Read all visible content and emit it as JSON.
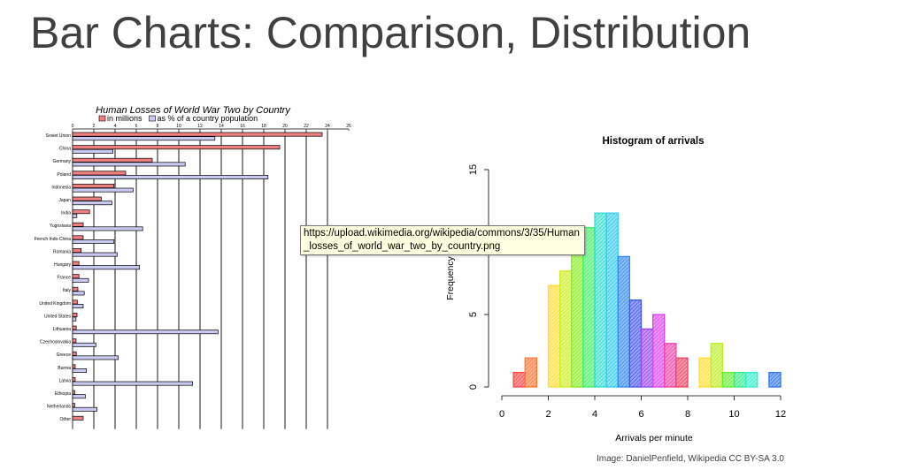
{
  "slide": {
    "title": "Bar Charts: Comparison, Distribution",
    "tooltip": "https://upload.wikimedia.org/wikipedia/commons/3/35/Human_losses_of_world_war_two_by_country.png",
    "credit": "Image: DanielPenfield, Wikipedia CC BY-SA 3.0"
  },
  "chart_data": [
    {
      "type": "bar",
      "orientation": "horizontal",
      "title": "Human Losses of World War Two by Country",
      "categories": [
        "Soviet Union",
        "China",
        "Germany",
        "Poland",
        "Indonesia",
        "Japan",
        "India",
        "Yugoslavia",
        "French Indo-China",
        "Romania",
        "Hungary",
        "France",
        "Italy",
        "United Kingdom",
        "United States",
        "Lithuania",
        "Czechoslovakia",
        "Greece",
        "Burma",
        "Latvia",
        "Ethiopia",
        "Netherlands",
        "Other"
      ],
      "series": [
        {
          "name": "in millions",
          "color": "#f08080",
          "values": [
            23.5,
            19.5,
            7.5,
            5.0,
            3.9,
            2.7,
            1.6,
            1.0,
            1.0,
            0.8,
            0.6,
            0.6,
            0.5,
            0.45,
            0.42,
            0.35,
            0.33,
            0.35,
            0.25,
            0.25,
            0.2,
            0.2,
            1.0
          ]
        },
        {
          "name": "as % of a country population",
          "color": "#c8c8f0",
          "values": [
            13.4,
            3.8,
            10.6,
            18.4,
            5.7,
            3.7,
            0.4,
            6.6,
            3.9,
            4.2,
            6.3,
            1.5,
            1.1,
            1.0,
            0.32,
            13.7,
            2.2,
            4.3,
            1.3,
            11.3,
            1.2,
            2.3,
            0
          ]
        }
      ],
      "xticks": [
        0,
        2,
        4,
        6,
        8,
        10,
        12,
        14,
        16,
        18,
        20,
        22,
        24,
        26
      ],
      "xlim": [
        0,
        26
      ],
      "legend": "top"
    },
    {
      "type": "histogram",
      "title": "Histogram of arrivals",
      "xlabel": "Arrivals per minute",
      "ylabel": "Frequency",
      "bin_width": 0.5,
      "bins": [
        {
          "x0": 0.5,
          "count": 1,
          "color": "#ff4444"
        },
        {
          "x0": 1.0,
          "count": 2,
          "color": "#ff7733"
        },
        {
          "x0": 1.5,
          "count": 0,
          "color": "#ff9933"
        },
        {
          "x0": 2.0,
          "count": 7,
          "color": "#ffdd33"
        },
        {
          "x0": 2.5,
          "count": 8,
          "color": "#ccee22"
        },
        {
          "x0": 3.0,
          "count": 10,
          "color": "#88ee22"
        },
        {
          "x0": 3.5,
          "count": 11,
          "color": "#44ee66"
        },
        {
          "x0": 4.0,
          "count": 12,
          "color": "#33ddcc"
        },
        {
          "x0": 4.5,
          "count": 12,
          "color": "#33ccee"
        },
        {
          "x0": 5.0,
          "count": 9,
          "color": "#3388ee"
        },
        {
          "x0": 5.5,
          "count": 6,
          "color": "#4455ee"
        },
        {
          "x0": 6.0,
          "count": 4,
          "color": "#9944ee"
        },
        {
          "x0": 6.5,
          "count": 5,
          "color": "#dd44ee"
        },
        {
          "x0": 7.0,
          "count": 3,
          "color": "#ee44aa"
        },
        {
          "x0": 7.5,
          "count": 2,
          "color": "#ee4466"
        },
        {
          "x0": 8.0,
          "count": 0,
          "color": "#ff6644"
        },
        {
          "x0": 8.5,
          "count": 2,
          "color": "#ffdd33"
        },
        {
          "x0": 9.0,
          "count": 3,
          "color": "#bbee22"
        },
        {
          "x0": 9.5,
          "count": 1,
          "color": "#66ee33"
        },
        {
          "x0": 10.0,
          "count": 1,
          "color": "#33ee88"
        },
        {
          "x0": 10.5,
          "count": 1,
          "color": "#33eecc"
        },
        {
          "x0": 11.0,
          "count": 0,
          "color": "#33ccee"
        },
        {
          "x0": 11.5,
          "count": 1,
          "color": "#3377ee"
        }
      ],
      "xticks": [
        0,
        2,
        4,
        6,
        8,
        10,
        12
      ],
      "yticks": [
        0,
        5,
        15
      ],
      "xlim": [
        0,
        12
      ],
      "ylim": [
        0,
        15
      ]
    }
  ]
}
